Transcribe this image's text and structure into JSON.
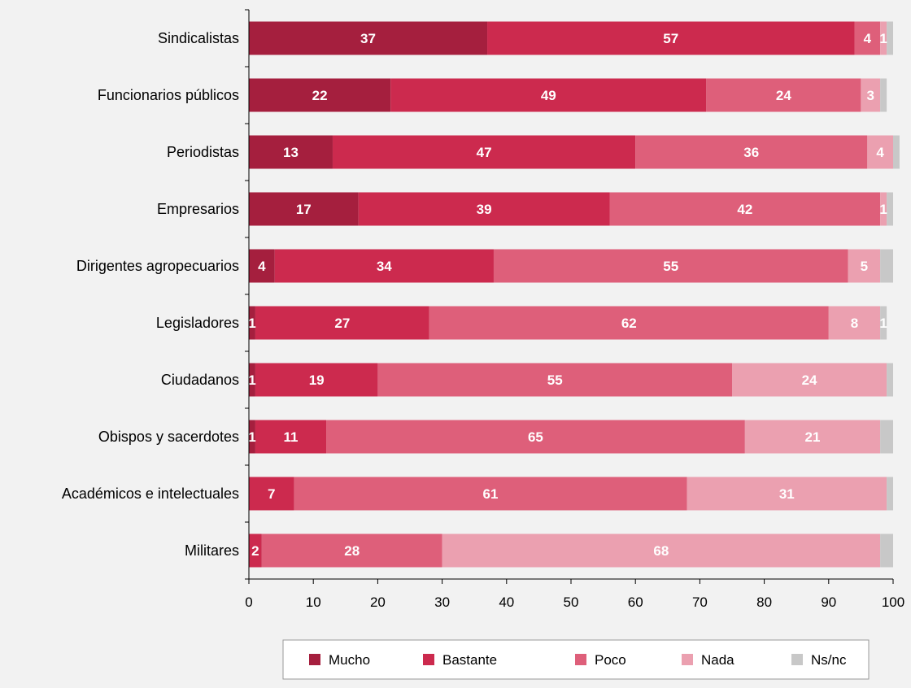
{
  "chart_data": {
    "type": "bar",
    "orientation": "horizontal",
    "stacked": true,
    "title": "",
    "xlabel": "",
    "ylabel": "",
    "xlim": [
      0,
      100
    ],
    "xticks": [
      0,
      10,
      20,
      30,
      40,
      50,
      60,
      70,
      80,
      90,
      100
    ],
    "grid": false,
    "legend_position": "bottom-right",
    "categories": [
      "Sindicalistas",
      "Funcionarios públicos",
      "Periodistas",
      "Empresarios",
      "Dirigentes agropecuarios",
      "Legisladores",
      "Ciudadanos",
      "Obispos y sacerdotes",
      "Académicos e intelectuales",
      "Militares"
    ],
    "series": [
      {
        "name": "Mucho",
        "color": "#a51f3e",
        "values": [
          37,
          22,
          13,
          17,
          4,
          1,
          1,
          1,
          0,
          0
        ]
      },
      {
        "name": "Bastante",
        "color": "#cc2a4e",
        "values": [
          57,
          49,
          47,
          39,
          34,
          27,
          19,
          11,
          7,
          2
        ]
      },
      {
        "name": "Poco",
        "color": "#de5f7a",
        "values": [
          4,
          24,
          36,
          42,
          55,
          62,
          55,
          65,
          61,
          28
        ]
      },
      {
        "name": "Nada",
        "color": "#eba0b0",
        "values": [
          1,
          3,
          4,
          1,
          5,
          8,
          24,
          21,
          31,
          68
        ]
      },
      {
        "name": "Ns/nc",
        "color": "#c8c8c8",
        "values": [
          1,
          1,
          1,
          1,
          2,
          1,
          1,
          2,
          1,
          2
        ]
      }
    ],
    "data_labels": [
      [
        "37",
        "57",
        "4",
        "1",
        ""
      ],
      [
        "22",
        "49",
        "24",
        "3",
        ""
      ],
      [
        "13",
        "47",
        "36",
        "4",
        ""
      ],
      [
        "17",
        "39",
        "42",
        "1",
        ""
      ],
      [
        "4",
        "34",
        "55",
        "5",
        ""
      ],
      [
        "1",
        "27",
        "62",
        "8",
        "1"
      ],
      [
        "1",
        "19",
        "55",
        "24",
        ""
      ],
      [
        "1",
        "11",
        "65",
        "21",
        ""
      ],
      [
        "",
        "7",
        "61",
        "31",
        ""
      ],
      [
        "",
        "2",
        "28",
        "68",
        ""
      ]
    ]
  }
}
